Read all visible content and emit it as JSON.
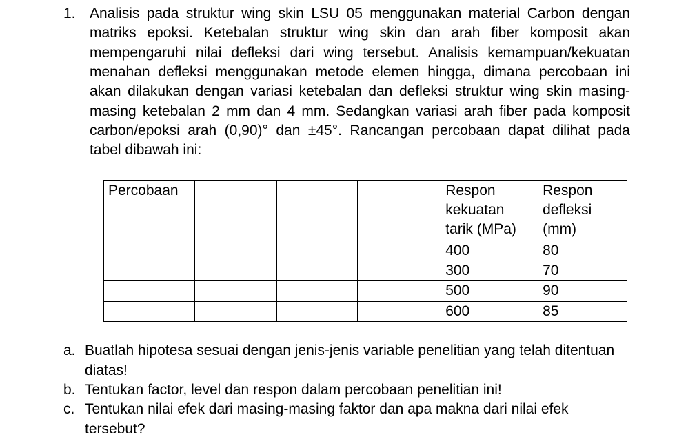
{
  "item": {
    "number": "1.",
    "paragraph": "Analisis pada struktur wing skin LSU 05 menggunakan material Carbon dengan matriks epoksi. Ketebalan struktur wing skin dan arah fiber komposit akan mempengaruhi nilai defleksi dari wing tersebut. Analisis kemampuan/kekuatan menahan defleksi menggunakan metode elemen hingga, dimana percobaan ini akan dilakukan dengan variasi ketebalan dan defleksi struktur wing skin masing-masing ketebalan 2 mm dan 4 mm. Sedangkan variasi arah fiber pada komposit carbon/epoksi arah (0,90)° dan ±45°. Rancangan percobaan dapat dilihat pada tabel dibawah ini:"
  },
  "table": {
    "headers": [
      "Percobaan",
      "",
      "",
      "",
      "Respon kekuatan tarik (MPa)",
      "Respon defleksi (mm)"
    ],
    "col_widths": [
      "132px",
      "122px",
      "120px",
      "124px",
      "142px",
      "130px"
    ],
    "rows": [
      [
        "",
        "",
        "",
        "",
        "400",
        "80"
      ],
      [
        "",
        "",
        "",
        "",
        "300",
        "70"
      ],
      [
        "",
        "",
        "",
        "",
        "500",
        "90"
      ],
      [
        "",
        "",
        "",
        "",
        "600",
        "85"
      ]
    ]
  },
  "subs": {
    "a_marker": "a.",
    "a_text": "Buatlah hipotesa sesuai dengan jenis-jenis variable penelitian yang telah ditentuan",
    "a_cont": "diatas!",
    "b_marker": "b.",
    "b_text": "Tentukan factor, level dan respon dalam percobaan penelitian ini!",
    "c_marker": "c.",
    "c_text": "Tentukan nilai efek dari masing-masing faktor dan apa makna dari nilai efek",
    "c_cont": "tersebut?"
  }
}
